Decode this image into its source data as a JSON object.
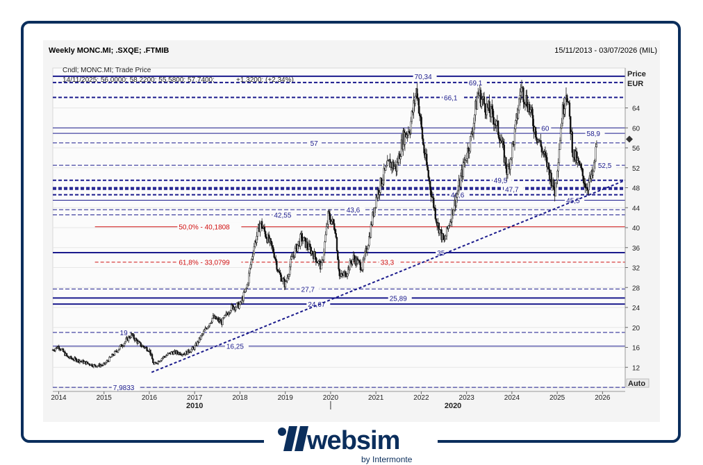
{
  "header": {
    "title": "Weekly MONC.MI; .SXQE; .FTMIB",
    "range": "15/11/2013 - 03/07/2026 (MIL)",
    "info_line1": "Cndl; MONC.MI; Trade Price",
    "info_line2a": "14/11/2025; 56,0000; 58,2200; 55,5800; 57,7400;",
    "info_line2b": "+1,3200; (+2,34%)"
  },
  "axis": {
    "price_label": "Price",
    "currency_label": "EUR",
    "auto_label": "Auto",
    "y_ticks": [
      12,
      16,
      20,
      24,
      28,
      32,
      36,
      40,
      44,
      48,
      52,
      56,
      60,
      64
    ],
    "x_ticks": [
      "2014",
      "2015",
      "2016",
      "2017",
      "2018",
      "2019",
      "2020",
      "2021",
      "2022",
      "2023",
      "2024",
      "2025",
      "2026"
    ],
    "decade_labels": [
      {
        "label": "2010",
        "year": 2017
      },
      {
        "label": "2020",
        "year": 2022.7
      }
    ]
  },
  "colors": {
    "frame": "#0b2e5c",
    "level": "#1a1a8c",
    "fib": "#d01010",
    "candle": "#111111",
    "trendline": "#1a1a8c",
    "last_price_marker": "#333333"
  },
  "levels": [
    {
      "value": 70.34,
      "label": "70,34",
      "style": "solid-thick",
      "lx": 2021.85
    },
    {
      "value": 69.1,
      "label": "69,1",
      "style": "dash-thick",
      "lx": 2023.05
    },
    {
      "value": 66.1,
      "label": "66,1",
      "style": "dash-thick",
      "lx": 2022.5
    },
    {
      "value": 60,
      "label": "60",
      "style": "solid",
      "lx": 2024.65
    },
    {
      "value": 58.9,
      "label": "58,9",
      "style": "solid",
      "lx": 2025.65
    },
    {
      "value": 57,
      "label": "57",
      "style": "dash",
      "lx": 2019.55
    },
    {
      "value": 52.5,
      "label": "52,5",
      "style": "dash",
      "lx": 2025.9
    },
    {
      "value": 49.5,
      "label": "49,5",
      "style": "dash-thick",
      "lx": 2023.6
    },
    {
      "value": 48,
      "label": "",
      "style": "dash-thick",
      "lx": 0
    },
    {
      "value": 47.7,
      "label": "47,7",
      "style": "dash-thick",
      "lx": 2023.85
    },
    {
      "value": 46.6,
      "label": "46,6",
      "style": "dash-thick",
      "lx": 2022.65
    },
    {
      "value": 45.5,
      "label": "45,5",
      "style": "solid",
      "lx": 2025.2
    },
    {
      "value": 43.6,
      "label": "43,6",
      "style": "dash",
      "lx": 2020.35
    },
    {
      "value": 42.55,
      "label": "42,55",
      "style": "dash",
      "lx": 2018.75
    },
    {
      "value": 35,
      "label": "35",
      "style": "solid-thick",
      "lx": 2022.35
    },
    {
      "value": 27.7,
      "label": "27,7",
      "style": "dash",
      "lx": 2019.35
    },
    {
      "value": 25.89,
      "label": "25,89",
      "style": "solid-thick",
      "lx": 2021.3
    },
    {
      "value": 24.67,
      "label": "24,67",
      "style": "solid-thick",
      "lx": 2019.5
    },
    {
      "value": 19,
      "label": "19",
      "style": "dash",
      "lx": 2015.35
    },
    {
      "value": 16.25,
      "label": "16,25",
      "style": "solid",
      "lx": 2017.7
    },
    {
      "value": 7.9833,
      "label": "7,9833",
      "style": "dash",
      "lx": 2015.2
    }
  ],
  "fib_levels": [
    {
      "value": 40.1808,
      "label": "50,0% - 40,1808",
      "x0": 2014.8
    },
    {
      "value": 33.0799,
      "label": "61,8% - 33,0799",
      "x0": 2014.8
    }
  ],
  "fib_label_33": "33,3",
  "trendline": {
    "x0": 2016.05,
    "y0": 11.0,
    "x1": 2026.5,
    "y1": 49.5
  },
  "chart_data": {
    "type": "candlestick",
    "title": "Weekly MONC.MI; .SXQE; .FTMIB",
    "series_name": "MONC.MI",
    "xlim": [
      2013.87,
      2026.5
    ],
    "ylim": [
      8,
      72
    ],
    "ylabel": "Price EUR",
    "last_candle": {
      "date": "14/11/2025",
      "open": 56.0,
      "high": 58.22,
      "low": 55.58,
      "close": 57.74,
      "change": 1.32,
      "change_pct": 2.34
    },
    "anchors": [
      [
        2013.87,
        15.5
      ],
      [
        2014.0,
        16.2
      ],
      [
        2014.2,
        14.0
      ],
      [
        2014.5,
        13.2
      ],
      [
        2014.8,
        12.3
      ],
      [
        2015.0,
        12.5
      ],
      [
        2015.2,
        14.5
      ],
      [
        2015.45,
        17.0
      ],
      [
        2015.6,
        18.5
      ],
      [
        2015.8,
        16.5
      ],
      [
        2016.0,
        15.5
      ],
      [
        2016.1,
        12.5
      ],
      [
        2016.3,
        14.0
      ],
      [
        2016.5,
        15.0
      ],
      [
        2016.8,
        14.8
      ],
      [
        2017.0,
        16.0
      ],
      [
        2017.2,
        19.0
      ],
      [
        2017.4,
        22.0
      ],
      [
        2017.6,
        21.0
      ],
      [
        2017.8,
        24.0
      ],
      [
        2018.0,
        24.5
      ],
      [
        2018.15,
        28.0
      ],
      [
        2018.3,
        36.0
      ],
      [
        2018.45,
        41.0
      ],
      [
        2018.6,
        38.0
      ],
      [
        2018.75,
        35.0
      ],
      [
        2018.85,
        31.0
      ],
      [
        2019.0,
        28.5
      ],
      [
        2019.15,
        34.0
      ],
      [
        2019.35,
        38.0
      ],
      [
        2019.6,
        35.0
      ],
      [
        2019.8,
        32.0
      ],
      [
        2019.95,
        42.5
      ],
      [
        2020.1,
        40.0
      ],
      [
        2020.2,
        30.0
      ],
      [
        2020.35,
        31.0
      ],
      [
        2020.5,
        34.0
      ],
      [
        2020.7,
        32.0
      ],
      [
        2020.85,
        38.0
      ],
      [
        2021.0,
        46.0
      ],
      [
        2021.15,
        50.0
      ],
      [
        2021.3,
        53.0
      ],
      [
        2021.45,
        52.0
      ],
      [
        2021.6,
        58.0
      ],
      [
        2021.75,
        60.0
      ],
      [
        2021.9,
        68.0
      ],
      [
        2022.05,
        56.0
      ],
      [
        2022.2,
        48.0
      ],
      [
        2022.35,
        41.0
      ],
      [
        2022.5,
        37.0
      ],
      [
        2022.65,
        42.0
      ],
      [
        2022.8,
        47.0
      ],
      [
        2022.95,
        53.0
      ],
      [
        2023.1,
        58.0
      ],
      [
        2023.25,
        67.0
      ],
      [
        2023.45,
        64.0
      ],
      [
        2023.6,
        62.0
      ],
      [
        2023.75,
        58.0
      ],
      [
        2023.9,
        51.0
      ],
      [
        2024.05,
        58.0
      ],
      [
        2024.2,
        68.0
      ],
      [
        2024.35,
        65.0
      ],
      [
        2024.5,
        60.0
      ],
      [
        2024.65,
        56.0
      ],
      [
        2024.8,
        52.0
      ],
      [
        2024.95,
        47.0
      ],
      [
        2025.1,
        62.0
      ],
      [
        2025.2,
        68.0
      ],
      [
        2025.35,
        55.0
      ],
      [
        2025.5,
        52.0
      ],
      [
        2025.65,
        48.0
      ],
      [
        2025.8,
        51.0
      ],
      [
        2025.88,
        57.74
      ]
    ]
  }
}
